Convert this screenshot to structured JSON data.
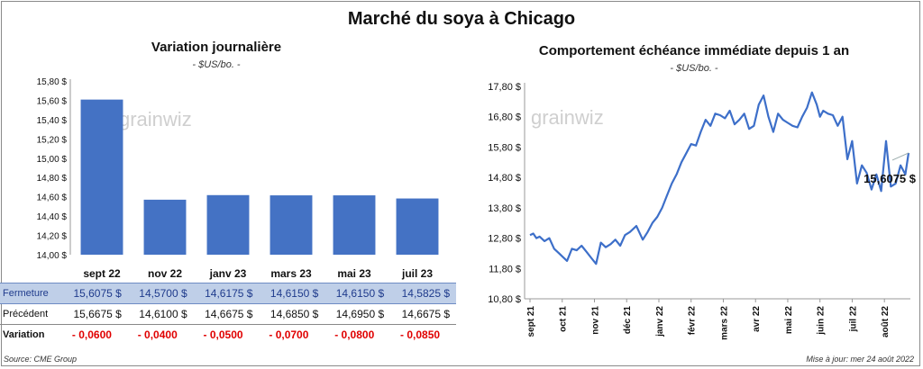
{
  "title": "Marché du soya à Chicago",
  "left_chart": {
    "title": "Variation  journalière",
    "unit": "- $US/bo. -"
  },
  "right_chart": {
    "title": "Comportement  échéance immédiate depuis 1 an",
    "unit": "- $US/bo. -",
    "last_value_label": "15,6075 $"
  },
  "watermark": "grainwiz",
  "table": {
    "rows": [
      {
        "label": "Fermeture",
        "values": [
          "15,6075  $",
          "14,5700  $",
          "14,6175  $",
          "14,6150  $",
          "14,6150  $",
          "14,5825  $"
        ]
      },
      {
        "label": "Précédent",
        "values": [
          "15,6675  $",
          "14,6100  $",
          "14,6675  $",
          "14,6850  $",
          "14,6950  $",
          "14,6675  $"
        ]
      },
      {
        "label": "Variation",
        "values": [
          "- 0,0600",
          "- 0,0400",
          "- 0,0500",
          "- 0,0700",
          "- 0,0800",
          "- 0,0850"
        ]
      }
    ]
  },
  "footer": {
    "source": "Source: CME Group",
    "updated": "Mise à jour: mer 24 août 2022"
  },
  "colors": {
    "bar": "#4472c4",
    "line": "#3d6fc9",
    "negative": "#e00000",
    "highlight_row": "#bfcfe8"
  },
  "chart_data": [
    {
      "type": "bar",
      "title": "Variation  journalière",
      "ylabel": "- $US/bo. -",
      "categories": [
        "sept 22",
        "nov 22",
        "janv 23",
        "mars 23",
        "mai 23",
        "juil 23"
      ],
      "values": [
        15.6075,
        14.57,
        14.6175,
        14.615,
        14.615,
        14.5825
      ],
      "yticks": [
        "14,00 $",
        "14,20 $",
        "14,40 $",
        "14,60 $",
        "14,80 $",
        "15,00 $",
        "15,20 $",
        "15,40 $",
        "15,60 $",
        "15,80 $"
      ],
      "ylim": [
        14.0,
        15.8
      ],
      "grid": false
    },
    {
      "type": "line",
      "title": "Comportement  échéance immédiate depuis 1 an",
      "ylabel": "- $US/bo. -",
      "xticks": [
        "sept 21",
        "oct 21",
        "nov 21",
        "déc 21",
        "janv 22",
        "févr 22",
        "mars 22",
        "avr 22",
        "mai 22",
        "juin 22",
        "juil 22",
        "août 22"
      ],
      "yticks": [
        "10,80 $",
        "11,80 $",
        "12,80 $",
        "13,80 $",
        "14,80 $",
        "15,80 $",
        "16,80 $",
        "17,80 $"
      ],
      "ylim": [
        10.8,
        17.8
      ],
      "x": [
        0,
        0.1,
        0.2,
        0.3,
        0.45,
        0.6,
        0.75,
        0.9,
        1.0,
        1.15,
        1.3,
        1.45,
        1.6,
        1.75,
        1.9,
        2.05,
        2.2,
        2.35,
        2.5,
        2.65,
        2.8,
        2.95,
        3.1,
        3.3,
        3.5,
        3.65,
        3.8,
        3.95,
        4.1,
        4.25,
        4.4,
        4.55,
        4.7,
        4.85,
        5.0,
        5.15,
        5.3,
        5.45,
        5.6,
        5.75,
        5.9,
        6.05,
        6.2,
        6.35,
        6.5,
        6.65,
        6.8,
        6.95,
        7.1,
        7.25,
        7.4,
        7.55,
        7.7,
        7.85,
        8.0,
        8.15,
        8.3,
        8.45,
        8.6,
        8.75,
        8.9,
        9.0,
        9.1,
        9.25,
        9.4,
        9.55,
        9.7,
        9.85,
        10.0,
        10.15,
        10.3,
        10.45,
        10.6,
        10.75,
        10.9,
        11.05,
        11.2,
        11.35,
        11.5,
        11.65,
        11.75
      ],
      "values": [
        12.9,
        12.95,
        12.8,
        12.85,
        12.7,
        12.8,
        12.45,
        12.3,
        12.2,
        12.05,
        12.45,
        12.4,
        12.55,
        12.35,
        12.15,
        11.95,
        12.65,
        12.5,
        12.6,
        12.75,
        12.55,
        12.9,
        13.0,
        13.2,
        12.75,
        13.0,
        13.3,
        13.5,
        13.8,
        14.2,
        14.6,
        14.9,
        15.3,
        15.6,
        15.9,
        15.85,
        16.3,
        16.7,
        16.5,
        16.9,
        16.85,
        16.75,
        17.0,
        16.55,
        16.7,
        16.9,
        16.4,
        16.5,
        17.2,
        17.5,
        16.8,
        16.3,
        16.9,
        16.7,
        16.6,
        16.5,
        16.45,
        16.8,
        17.1,
        17.6,
        17.2,
        16.8,
        17.0,
        16.9,
        16.85,
        16.5,
        16.8,
        15.4,
        16.0,
        14.6,
        15.2,
        14.95,
        14.4,
        14.9,
        14.35,
        16.0,
        14.5,
        14.6,
        15.2,
        14.9,
        15.6075
      ]
    }
  ]
}
